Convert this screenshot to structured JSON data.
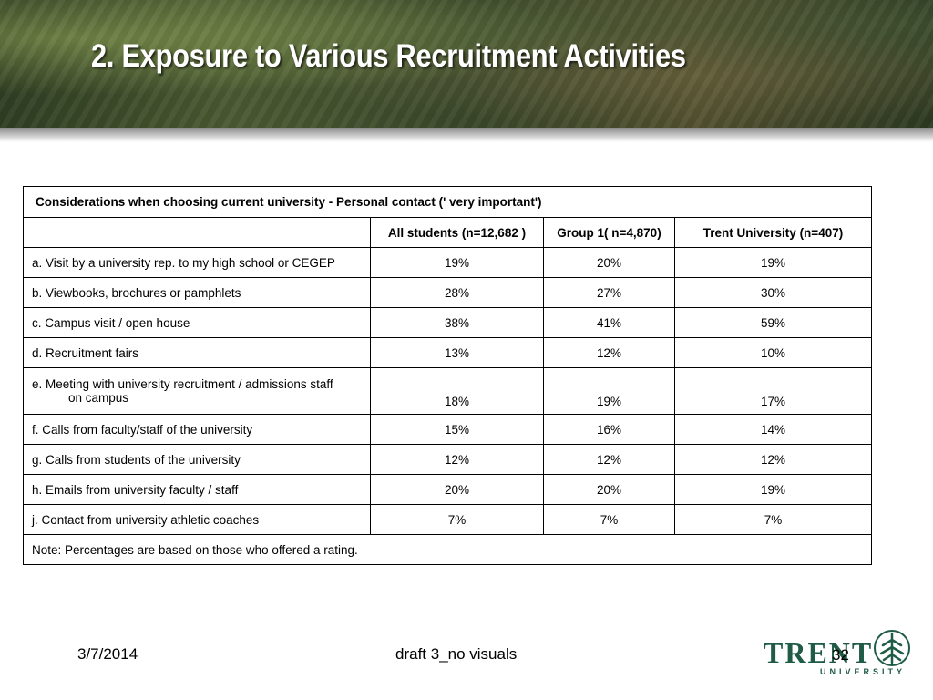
{
  "slide": {
    "title": "2. Exposure to Various Recruitment Activities"
  },
  "table": {
    "caption": "Considerations when choosing current university - Personal contact (' very important')",
    "columns": [
      "",
      "All students (n=12,682 )",
      "Group 1( n=4,870)",
      "Trent University (n=407)"
    ],
    "rows": [
      {
        "label": "a. Visit by a university rep. to my high school or CEGEP",
        "values": [
          "19%",
          "20%",
          "19%"
        ]
      },
      {
        "label": "b. Viewbooks, brochures or pamphlets",
        "values": [
          "28%",
          "27%",
          "30%"
        ]
      },
      {
        "label": "c. Campus visit /  open house",
        "values": [
          "38%",
          "41%",
          "59%"
        ]
      },
      {
        "label": "d. Recruitment fairs",
        "values": [
          "13%",
          "12%",
          "10%"
        ]
      },
      {
        "label_line1": "e. Meeting with university recruitment / admissions staff",
        "label_line2": "on campus",
        "values": [
          "18%",
          "19%",
          "17%"
        ]
      },
      {
        "label": "f. Calls from faculty/staff of the university",
        "values": [
          "15%",
          "16%",
          "14%"
        ]
      },
      {
        "label": "g. Calls from students of the university",
        "values": [
          "12%",
          "12%",
          "12%"
        ]
      },
      {
        "label": "h. Emails from university faculty / staff",
        "values": [
          "20%",
          "20%",
          "19%"
        ]
      },
      {
        "label": "j. Contact from university athletic coaches",
        "values": [
          "7%",
          "7%",
          "7%"
        ]
      }
    ],
    "note": "Note: Percentages are based on those who offered a rating."
  },
  "footer": {
    "date": "3/7/2014",
    "center_text": "draft 3_no visuals",
    "slide_number": "32"
  },
  "logo": {
    "wordmark": "TRENT",
    "subtext": "UNIVERSITY",
    "color": "#1f5b45"
  }
}
